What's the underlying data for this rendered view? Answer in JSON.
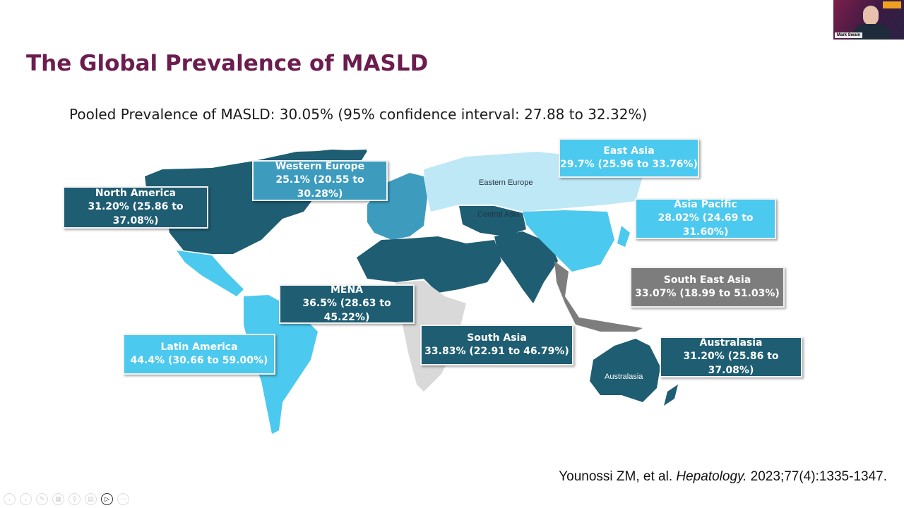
{
  "slide": {
    "title": "The Global Prevalence of MASLD",
    "subtitle": "Pooled Prevalence of MASLD: 30.05% (95% confidence interval: 27.88 to 32.32%)",
    "citation_authors": "Younossi ZM, et al.",
    "citation_journal": "Hepatology.",
    "citation_ref": "2023;77(4):1335-1347."
  },
  "regions": [
    {
      "name": "North America",
      "value": "31.20% (25.86 to 37.08%)",
      "shade": "dark"
    },
    {
      "name": "Western Europe",
      "value": "25.1% (20.55 to 30.28%)",
      "shade": "mid"
    },
    {
      "name": "East Asia",
      "value": "29.7% (25.96 to 33.76%)",
      "shade": "light"
    },
    {
      "name": "Asia Pacific",
      "value": "28.02% (24.69 to 31.60%)",
      "shade": "light"
    },
    {
      "name": "South East Asia",
      "value": "33.07% (18.99 to 51.03%)",
      "shade": "gray"
    },
    {
      "name": "MENA",
      "value": "36.5% (28.63 to 45.22%)",
      "shade": "dark"
    },
    {
      "name": "South Asia",
      "value": "33.83% (22.91 to 46.79%)",
      "shade": "dark"
    },
    {
      "name": "Latin America",
      "value": "44.4% (30.66 to 59.00%)",
      "shade": "light"
    },
    {
      "name": "Australasia",
      "value": "31.20% (25.86 to 37.08%)",
      "shade": "dark"
    }
  ],
  "map_labels": {
    "eastern_europe": "Eastern Europe",
    "central_asia": "Central Asia",
    "australasia": "Australasia"
  },
  "colors": {
    "title": "#6b1d4f",
    "dark": "#1e5d72",
    "mid": "#3d9cbe",
    "light": "#4cc9ee",
    "gray": "#7d7d7d",
    "no_data": "#d9d9d9"
  },
  "video": {
    "participant_name": "Mark Swain"
  },
  "toolbar": {
    "icons": [
      "prev-icon",
      "next-icon",
      "pen-icon",
      "slides-icon",
      "zoom-icon",
      "subtitles-icon",
      "camera-icon",
      "more-icon"
    ]
  }
}
